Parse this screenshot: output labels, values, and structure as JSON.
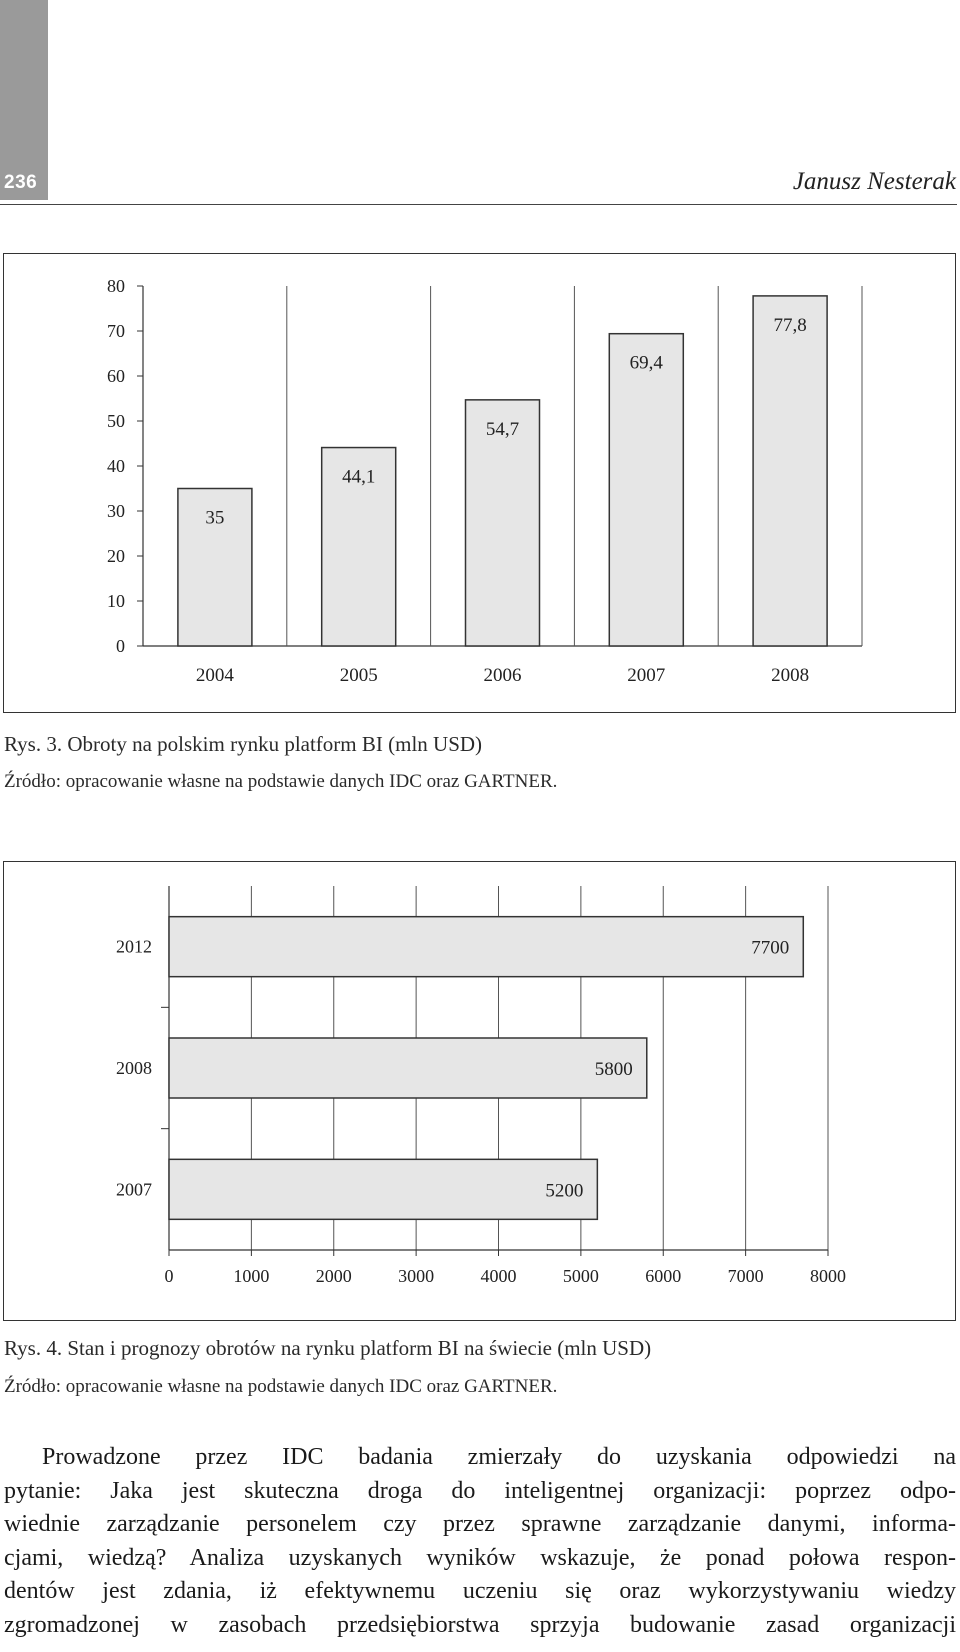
{
  "header": {
    "page_number": "236",
    "author": "Janusz Nesterak"
  },
  "figure3": {
    "caption": "Rys. 3. Obroty na polskim rynku platform BI (mln USD)",
    "source": "Źródło: opracowanie własne na podstawie danych IDC oraz GARTNER."
  },
  "figure4": {
    "caption": "Rys. 4. Stan i prognozy obrotów na rynku platform BI na świecie (mln USD)",
    "source": "Źródło: opracowanie własne na podstawie danych IDC oraz GARTNER."
  },
  "chart_data": [
    {
      "type": "bar",
      "orientation": "vertical",
      "categories": [
        "2004",
        "2005",
        "2006",
        "2007",
        "2008"
      ],
      "values": [
        35,
        44.1,
        54.7,
        69.4,
        77.8
      ],
      "data_labels": [
        "35",
        "44,1",
        "54,7",
        "69,4",
        "77,8"
      ],
      "y_ticks": [
        "0",
        "10",
        "20",
        "30",
        "40",
        "50",
        "60",
        "70",
        "80"
      ],
      "ylim": [
        0,
        80
      ],
      "grid": "vertical lines between categories",
      "legend": "none",
      "colors": {
        "bar_fill": "#e6e6e6",
        "bar_stroke": "#333333"
      }
    },
    {
      "type": "bar",
      "orientation": "horizontal",
      "categories": [
        "2012",
        "2008",
        "2007"
      ],
      "values": [
        7700,
        5800,
        5200
      ],
      "data_labels": [
        "7700",
        "5800",
        "5200"
      ],
      "x_ticks": [
        "0",
        "1000",
        "2000",
        "3000",
        "4000",
        "5000",
        "6000",
        "7000",
        "8000"
      ],
      "xlim": [
        0,
        8000
      ],
      "grid": "vertical gridlines at each 1000",
      "legend": "none",
      "colors": {
        "bar_fill": "#e6e6e6",
        "bar_stroke": "#333333"
      }
    }
  ],
  "body": {
    "lines": [
      "Prowadzone przez IDC badania zmierzały do uzyskania odpowiedzi na",
      "pytanie: Jaka jest skuteczna droga do inteligentnej organizacji: poprzez odpo-",
      "wiednie zarządzanie personelem czy przez sprawne zarządzanie danymi, informa-",
      "cjami, wiedzą? Analiza uzyskanych wyników wskazuje, że ponad połowa respon-",
      "dentów jest zdania, iż efektywnemu uczeniu się oraz wykorzystywaniu wiedzy",
      "zgromadzonej w zasobach przedsiębiorstwa sprzyja budowanie zasad organizacji"
    ]
  }
}
